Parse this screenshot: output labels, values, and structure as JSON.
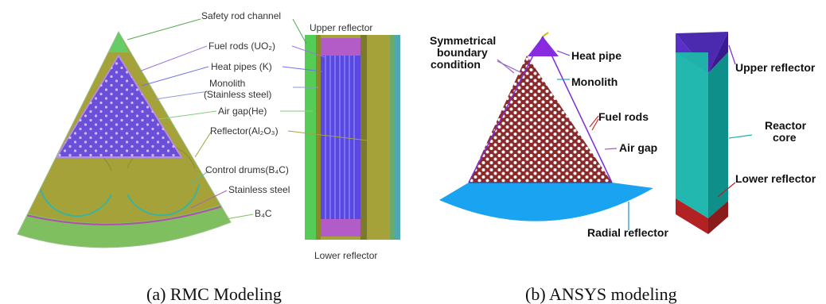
{
  "panel_a": {
    "caption": "(a)  RMC Modeling",
    "labels": {
      "safety_rod_channel": "Safety rod channel",
      "upper_reflector": "Upper reflector",
      "fuel_rods": "Fuel rods (UO₂)",
      "heat_pipes": "Heat pipes (K)",
      "monolith": "Monolith",
      "monolith_material": "(Stainless steel)",
      "air_gap": "Air gap(He)",
      "reflector": "Reflector(Al₂O₃)",
      "control_drums": "Control drums(B₄C)",
      "stainless_steel": "Stainless steel",
      "b4c": "B₄C",
      "lower_reflector": "Lower reflector"
    }
  },
  "panel_b": {
    "caption": "(b) ANSYS modeling",
    "labels": {
      "symmetrical_1": "Symmetrical",
      "symmetrical_2": "boundary",
      "symmetrical_3": "condition",
      "heat_pipe": "Heat pipe",
      "monolith": "Monolith",
      "fuel_rods": "Fuel rods",
      "air_gap": "Air gap",
      "radial_reflector": "Radial reflector",
      "upper_reflector": "Upper reflector",
      "reactor_1": "Reactor",
      "reactor_2": "core",
      "lower_reflector": "Lower reflector"
    }
  },
  "colors": {
    "fuel_region": "#6b4fd8",
    "reflector_olive": "#a5a23a",
    "safety_rod_green": "#66cc66",
    "ansys_fuel": "#8b2a2a",
    "ansys_reflector": "#1aa3f0",
    "ansys_top": "#8a2be2",
    "ansys_core": "#20b2aa",
    "ansys_bottom": "#b22222"
  }
}
